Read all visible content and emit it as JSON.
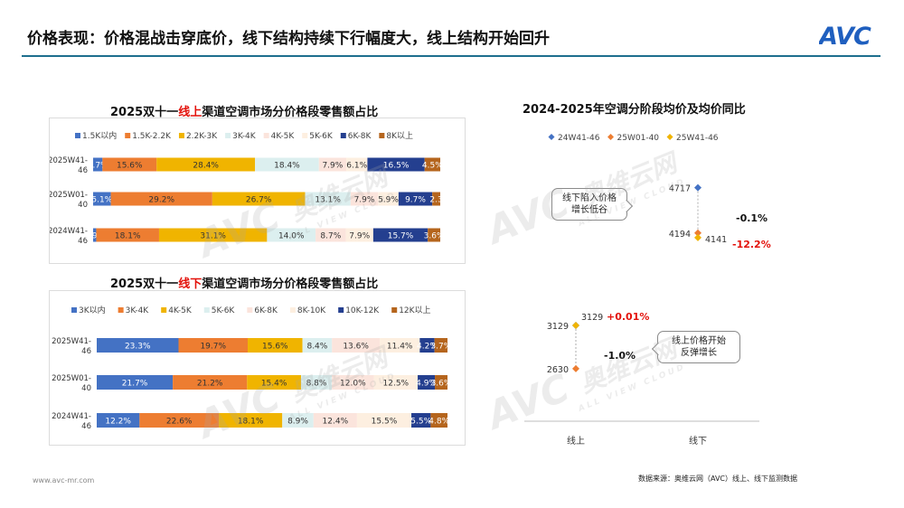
{
  "header": {
    "title": "价格表现：价格混战击穿底价，线下结构持续下行幅度大，线上结构开始回升",
    "logo_text": "AVC"
  },
  "footer": {
    "url": "www.avc-mr.com",
    "source": "数据来源：奥维云网（AVC）线上、线下监测数据"
  },
  "watermark": {
    "brand": "AVC",
    "cn": "奥维云网",
    "en": "ALL VIEW CLOUD"
  },
  "chart_data": [
    {
      "type": "bar",
      "stacked": true,
      "orientation": "horizontal",
      "title_prefix": "2025双十一",
      "title_highlight": "线上",
      "title_suffix": "渠道空调市场分价格段零售额占比",
      "categories": [
        "2025W41-46",
        "2025W01-40",
        "2024W41-46"
      ],
      "legend_position": "top",
      "series": [
        {
          "name": "1.5K以内",
          "color": "#4472c4",
          "values": [
            2.7,
            5.1,
            0.9
          ],
          "labels": [
            "2.7%",
            "5.1%",
            "0.9%"
          ]
        },
        {
          "name": "1.5K-2.2K",
          "color": "#ed7d31",
          "values": [
            15.6,
            29.2,
            18.1
          ],
          "labels": [
            "15.6%",
            "29.2%",
            "18.1%"
          ]
        },
        {
          "name": "2.2K-3K",
          "color": "#f0b400",
          "values": [
            28.4,
            26.7,
            31.1
          ],
          "labels": [
            "28.4%",
            "26.7%",
            "31.1%"
          ]
        },
        {
          "name": "3K-4K",
          "color": "#dcefef",
          "values": [
            18.4,
            13.1,
            14.0
          ],
          "labels": [
            "18.4%",
            "13.1%",
            "14.0%"
          ]
        },
        {
          "name": "4K-5K",
          "color": "#fbe4dc",
          "values": [
            7.9,
            7.9,
            8.7
          ],
          "labels": [
            "7.9%",
            "7.9%",
            "8.7%"
          ]
        },
        {
          "name": "5K-6K",
          "color": "#fdefe0",
          "values": [
            6.1,
            5.9,
            7.9
          ],
          "labels": [
            "6.1%",
            "5.9%",
            "7.9%"
          ]
        },
        {
          "name": "6K-8K",
          "color": "#243f8f",
          "values": [
            16.5,
            9.7,
            15.7
          ],
          "labels": [
            "16.5%",
            "9.7%",
            "15.7%"
          ]
        },
        {
          "name": "8K以上",
          "color": "#b5651d",
          "values": [
            4.5,
            2.3,
            3.6
          ],
          "labels": [
            "4.5%",
            "2.3",
            "3.6%"
          ]
        }
      ]
    },
    {
      "type": "bar",
      "stacked": true,
      "orientation": "horizontal",
      "title_prefix": "2025双十一",
      "title_highlight": "线下",
      "title_suffix": "渠道空调市场分价格段零售额占比",
      "categories": [
        "2025W41-46",
        "2025W01-40",
        "2024W41-46"
      ],
      "legend_position": "top",
      "series": [
        {
          "name": "3K以内",
          "color": "#4472c4",
          "values": [
            23.3,
            21.7,
            12.2
          ],
          "labels": [
            "23.3%",
            "21.7%",
            "12.2%"
          ]
        },
        {
          "name": "3K-4K",
          "color": "#ed7d31",
          "values": [
            19.7,
            21.2,
            22.6
          ],
          "labels": [
            "19.7%",
            "21.2%",
            "22.6%"
          ]
        },
        {
          "name": "4K-5K",
          "color": "#f0b400",
          "values": [
            15.6,
            15.4,
            18.1
          ],
          "labels": [
            "15.6%",
            "15.4%",
            "18.1%"
          ]
        },
        {
          "name": "5K-6K",
          "color": "#dcefef",
          "values": [
            8.4,
            8.8,
            8.9
          ],
          "labels": [
            "8.4%",
            "8.8%",
            "8.9%"
          ]
        },
        {
          "name": "6K-8K",
          "color": "#fbe4dc",
          "values": [
            13.6,
            12.0,
            12.4
          ],
          "labels": [
            "13.6%",
            "12.0%",
            "12.4%"
          ]
        },
        {
          "name": "8K-10K",
          "color": "#fdefe0",
          "values": [
            11.4,
            12.5,
            15.5
          ],
          "labels": [
            "11.4%",
            "12.5%",
            "15.5%"
          ]
        },
        {
          "name": "10K-12K",
          "color": "#243f8f",
          "values": [
            4.2,
            4.9,
            5.5
          ],
          "labels": [
            "4.2%",
            "4.9%",
            "5.5%"
          ]
        },
        {
          "name": "12K以上",
          "color": "#b5651d",
          "values": [
            3.7,
            3.6,
            4.8
          ],
          "labels": [
            "3.7%",
            "3.6%",
            "4.8%"
          ]
        }
      ]
    },
    {
      "type": "scatter",
      "title": "2024-2025年空调分阶段均价及均价同比",
      "categories": [
        "线上",
        "线下"
      ],
      "legend_position": "top",
      "series": [
        {
          "name": "24W41-46",
          "color": "#4472c4",
          "marker": "diamond",
          "values": [
            3129,
            4717
          ]
        },
        {
          "name": "25W01-40",
          "color": "#ed7d31",
          "marker": "diamond",
          "values": [
            2630,
            4194
          ]
        },
        {
          "name": "25W41-46",
          "color": "#f0b400",
          "marker": "diamond",
          "values": [
            3129,
            4141
          ]
        }
      ],
      "point_labels": {
        "online": [
          "3129",
          "3129",
          "2630"
        ],
        "offline": [
          "4717",
          "4194",
          "4141"
        ]
      },
      "yoy": {
        "online": {
          "label": "+0.01%",
          "color": "#e3120b"
        },
        "online_vs_h1": {
          "label": "-1.0%",
          "color": "#111111"
        },
        "offline": {
          "label": "-0.1%",
          "color": "#111111"
        },
        "offline_vs_h1": {
          "label": "-12.2%",
          "color": "#e3120b"
        }
      },
      "annotations": [
        {
          "text_line1": "线下陷入价格",
          "text_line2": "增长低谷"
        },
        {
          "text_line1": "线上价格开始",
          "text_line2": "反弹增长"
        }
      ]
    }
  ]
}
